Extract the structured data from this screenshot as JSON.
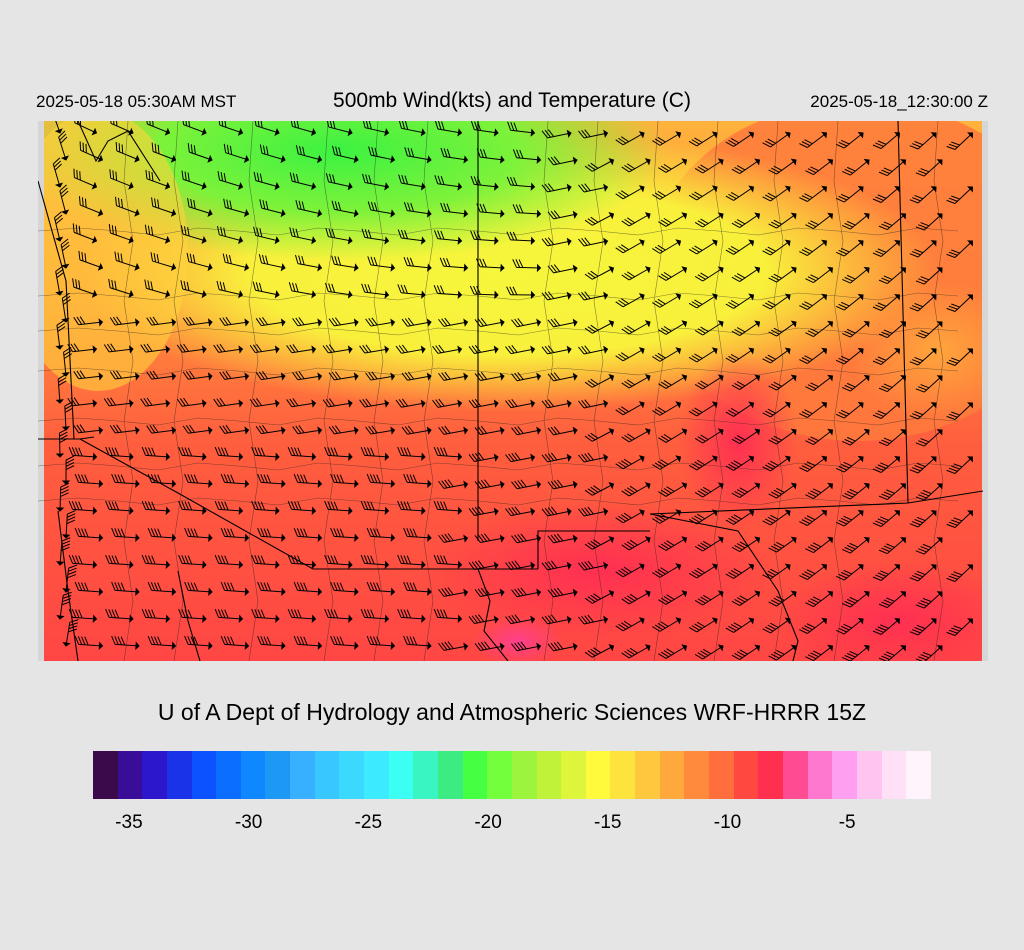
{
  "header": {
    "local_time": "2025-05-18 05:30AM MST",
    "title": "500mb Wind(kts) and Temperature (C)",
    "valid_time": "2025-05-18_12:30:00 Z"
  },
  "footer": {
    "credit": "U of A Dept of Hydrology and Atmospheric Sciences WRF-HRRR 15Z"
  },
  "colorbar": {
    "colors": [
      "#3b0a4a",
      "#3a0d99",
      "#2d17cc",
      "#1a32e8",
      "#0d52ff",
      "#0c6eff",
      "#0f88ff",
      "#1d98f4",
      "#37b1ff",
      "#38c7ff",
      "#3cd9ff",
      "#3cebff",
      "#3cfff3",
      "#39f5c1",
      "#3ceb81",
      "#45ff42",
      "#74ff3c",
      "#9cf53c",
      "#c0f23a",
      "#ddf53a",
      "#fffa3c",
      "#fde33c",
      "#ffc73d",
      "#ffa83c",
      "#ff8a3c",
      "#ff6e3c",
      "#ff4940",
      "#ff2f4f",
      "#ff4b91",
      "#ff78d0",
      "#ff9ff0",
      "#ffc4f0",
      "#ffe0f7",
      "#fff4fb"
    ],
    "tick_labels": [
      "-35",
      "-30",
      "-25",
      "-20",
      "-15",
      "-10",
      "-5"
    ],
    "tick_values": [
      -35,
      -30,
      -25,
      -20,
      -15,
      -10,
      -5
    ],
    "min": -36.5,
    "max": -1.5
  },
  "map": {
    "temperature_fill_colors": {
      "green": "#5cf03a",
      "lime": "#b8f23a",
      "yellow": "#f9f63c",
      "gold": "#ffcc3c",
      "orange": "#ff9a3c",
      "red_orange": "#ff6a3c",
      "red": "#ff4a42",
      "crimson": "#ff2e4f",
      "pink": "#ff4fa0"
    },
    "border_color": "#000000",
    "barb_color": "#000000"
  }
}
